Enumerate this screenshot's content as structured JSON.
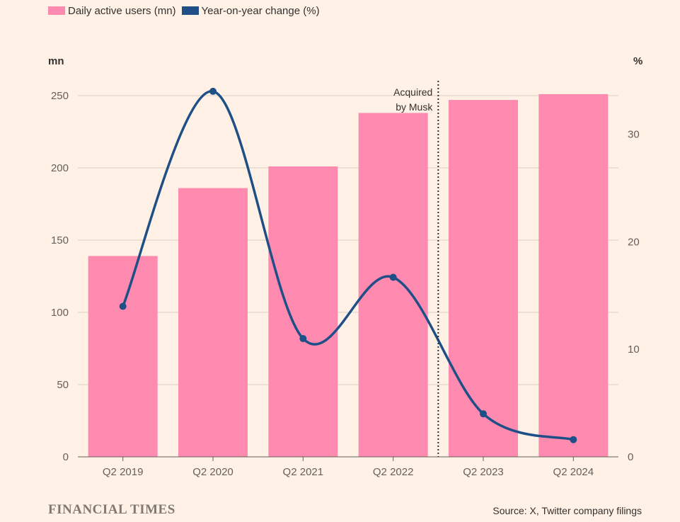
{
  "legend": {
    "bars_label": "Daily active users (mn)",
    "line_label": "Year-on-year change (%)"
  },
  "footer": {
    "brand": "FINANCIAL TIMES",
    "source": "Source: X, Twitter company filings"
  },
  "chart_data": {
    "type": "bar",
    "categories": [
      "Q2 2019",
      "Q2 2020",
      "Q2 2021",
      "Q2 2022",
      "Q2 2023",
      "Q2 2024"
    ],
    "series": [
      {
        "name": "Daily active users (mn)",
        "type": "bar",
        "axis": "left",
        "color": "#ff8ab0",
        "values": [
          139,
          186,
          201,
          238,
          247,
          251
        ]
      },
      {
        "name": "Year-on-year change (%)",
        "type": "line",
        "axis": "right",
        "color": "#1e4f86",
        "values": [
          14,
          34,
          11,
          16.7,
          4,
          1.6
        ]
      }
    ],
    "left_axis": {
      "unit": "mn",
      "ylim": [
        0,
        250
      ],
      "ticks": [
        "0",
        "50",
        "100",
        "150",
        "200",
        "250"
      ]
    },
    "right_axis": {
      "unit": "%",
      "ylim": [
        0,
        30
      ],
      "ticks": [
        "0",
        "10",
        "20",
        "30"
      ]
    },
    "annotation": {
      "text_lines": [
        "Acquired",
        "by Musk"
      ],
      "between": [
        "Q2 2022",
        "Q2 2023"
      ]
    },
    "grid": true,
    "legend_position": "top-left"
  }
}
